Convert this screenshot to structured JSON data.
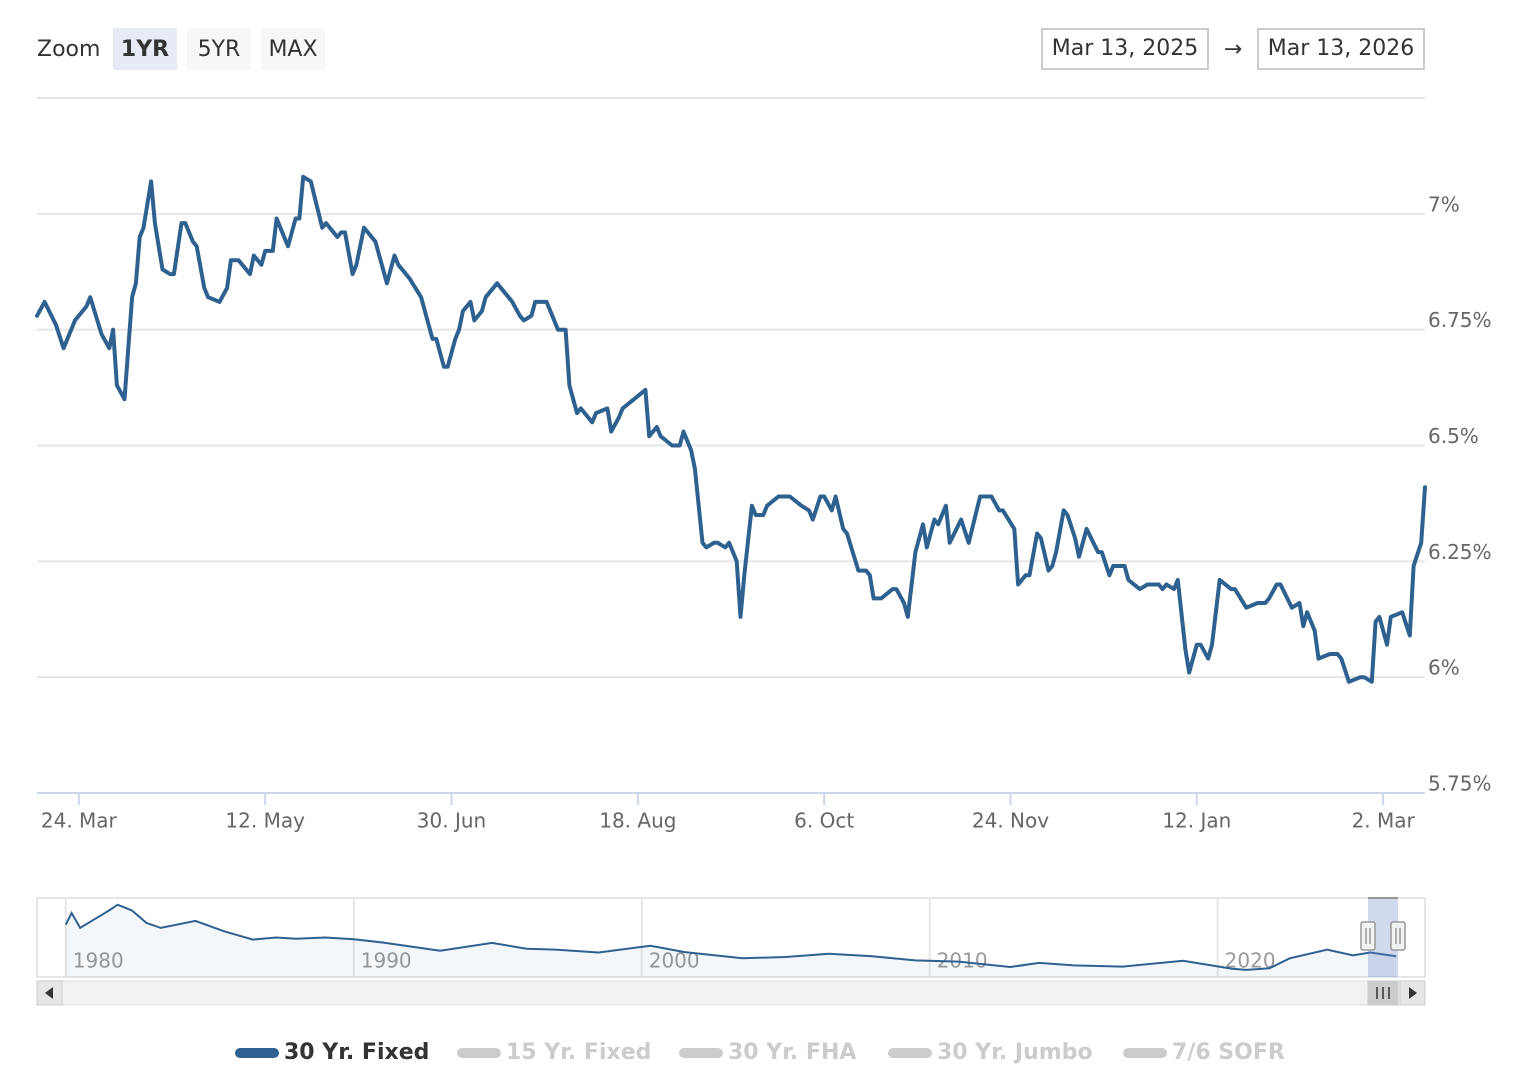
{
  "chart_data": {
    "type": "line",
    "range_selector": {
      "label": "Zoom",
      "buttons": [
        "1YR",
        "5YR",
        "MAX"
      ],
      "selected": 0,
      "from": "Mar 13, 2025",
      "separator": "→",
      "to": "Mar 13, 2026"
    },
    "x": [
      "2025-03-13",
      "2025-03-15",
      "2025-03-18",
      "2025-03-20",
      "2025-03-23",
      "2025-03-26",
      "2025-03-27",
      "2025-03-30",
      "2025-04-01",
      "2025-04-02",
      "2025-04-03",
      "2025-04-05",
      "2025-04-07",
      "2025-04-08",
      "2025-04-09",
      "2025-04-10",
      "2025-04-12",
      "2025-04-13",
      "2025-04-15",
      "2025-04-17",
      "2025-04-18",
      "2025-04-20",
      "2025-04-21",
      "2025-04-23",
      "2025-04-24",
      "2025-04-26",
      "2025-04-27",
      "2025-04-30",
      "2025-05-02",
      "2025-05-03",
      "2025-05-05",
      "2025-05-08",
      "2025-05-09",
      "2025-05-11",
      "2025-05-12",
      "2025-05-14",
      "2025-05-15",
      "2025-05-17",
      "2025-05-18",
      "2025-05-20",
      "2025-05-21",
      "2025-05-22",
      "2025-05-24",
      "2025-05-27",
      "2025-05-28",
      "2025-05-31",
      "2025-06-01",
      "2025-06-02",
      "2025-06-04",
      "2025-06-05",
      "2025-06-07",
      "2025-06-10",
      "2025-06-13",
      "2025-06-15",
      "2025-06-16",
      "2025-06-19",
      "2025-06-22",
      "2025-06-23",
      "2025-06-25",
      "2025-06-26",
      "2025-06-28",
      "2025-06-29",
      "2025-07-01",
      "2025-07-02",
      "2025-07-03",
      "2025-07-05",
      "2025-07-06",
      "2025-07-08",
      "2025-07-09",
      "2025-07-12",
      "2025-07-15",
      "2025-07-16",
      "2025-07-18",
      "2025-07-19",
      "2025-07-21",
      "2025-07-22",
      "2025-07-25",
      "2025-07-27",
      "2025-07-28",
      "2025-07-30",
      "2025-07-31",
      "2025-08-02",
      "2025-08-03",
      "2025-08-06",
      "2025-08-07",
      "2025-08-10",
      "2025-08-11",
      "2025-08-13",
      "2025-08-14",
      "2025-08-17",
      "2025-08-20",
      "2025-08-21",
      "2025-08-23",
      "2025-08-24",
      "2025-08-27",
      "2025-08-29",
      "2025-08-30",
      "2025-09-01",
      "2025-09-02",
      "2025-09-04",
      "2025-09-05",
      "2025-09-07",
      "2025-09-08",
      "2025-09-10",
      "2025-09-11",
      "2025-09-13",
      "2025-09-14",
      "2025-09-15",
      "2025-09-17",
      "2025-09-18",
      "2025-09-20",
      "2025-09-21",
      "2025-09-24",
      "2025-09-27",
      "2025-09-30",
      "2025-10-02",
      "2025-10-03",
      "2025-10-05",
      "2025-10-06",
      "2025-10-08",
      "2025-10-09",
      "2025-10-11",
      "2025-10-12",
      "2025-10-15",
      "2025-10-17",
      "2025-10-18",
      "2025-10-19",
      "2025-10-21",
      "2025-10-24",
      "2025-10-25",
      "2025-10-27",
      "2025-10-28",
      "2025-10-30",
      "2025-11-01",
      "2025-11-02",
      "2025-11-04",
      "2025-11-05",
      "2025-11-07",
      "2025-11-08",
      "2025-11-11",
      "2025-11-13",
      "2025-11-16",
      "2025-11-19",
      "2025-11-21",
      "2025-11-22",
      "2025-11-25",
      "2025-11-26",
      "2025-11-28",
      "2025-11-29",
      "2025-12-01",
      "2025-12-02",
      "2025-12-04",
      "2025-12-05",
      "2025-12-06",
      "2025-12-08",
      "2025-12-09",
      "2025-12-11",
      "2025-12-12",
      "2025-12-14",
      "2025-12-17",
      "2025-12-18",
      "2025-12-20",
      "2025-12-21",
      "2025-12-24",
      "2025-12-25",
      "2025-12-28",
      "2025-12-30",
      "2026-01-02",
      "2026-01-03",
      "2026-01-04",
      "2026-01-06",
      "2026-01-07",
      "2026-01-09",
      "2026-01-10",
      "2026-01-12",
      "2026-01-13",
      "2026-01-15",
      "2026-01-16",
      "2026-01-18",
      "2026-01-21",
      "2026-01-22",
      "2026-01-25",
      "2026-01-28",
      "2026-01-30",
      "2026-01-31",
      "2026-02-02",
      "2026-02-03",
      "2026-02-06",
      "2026-02-08",
      "2026-02-09",
      "2026-02-10",
      "2026-02-12",
      "2026-02-13",
      "2026-02-16",
      "2026-02-18",
      "2026-02-19",
      "2026-02-21",
      "2026-02-24",
      "2026-02-25",
      "2026-02-27",
      "2026-02-28",
      "2026-03-01",
      "2026-03-03",
      "2026-03-04",
      "2026-03-07",
      "2026-03-09",
      "2026-03-10",
      "2026-03-12",
      "2026-03-13"
    ],
    "series": [
      {
        "name": "30 Yr. Fixed",
        "color": "#2f6190",
        "visible": true,
        "values": [
          6.78,
          6.81,
          6.76,
          6.71,
          6.77,
          6.8,
          6.82,
          6.74,
          6.71,
          6.75,
          6.63,
          6.6,
          6.82,
          6.85,
          6.95,
          6.97,
          7.07,
          6.98,
          6.88,
          6.87,
          6.87,
          6.98,
          6.98,
          6.94,
          6.93,
          6.84,
          6.82,
          6.81,
          6.84,
          6.9,
          6.9,
          6.87,
          6.91,
          6.89,
          6.92,
          6.92,
          6.99,
          6.95,
          6.93,
          6.99,
          6.99,
          7.08,
          7.07,
          6.97,
          6.98,
          6.95,
          6.96,
          6.96,
          6.87,
          6.89,
          6.97,
          6.94,
          6.85,
          6.91,
          6.89,
          6.86,
          6.82,
          6.79,
          6.73,
          6.73,
          6.67,
          6.67,
          6.73,
          6.75,
          6.79,
          6.81,
          6.77,
          6.79,
          6.82,
          6.85,
          6.82,
          6.81,
          6.78,
          6.77,
          6.78,
          6.81,
          6.81,
          6.77,
          6.75,
          6.75,
          6.63,
          6.57,
          6.58,
          6.55,
          6.57,
          6.58,
          6.53,
          6.56,
          6.58,
          6.6,
          6.62,
          6.52,
          6.54,
          6.52,
          6.5,
          6.5,
          6.53,
          6.49,
          6.45,
          6.29,
          6.28,
          6.29,
          6.29,
          6.28,
          6.29,
          6.25,
          6.13,
          6.22,
          6.37,
          6.35,
          6.35,
          6.37,
          6.39,
          6.39,
          6.37,
          6.36,
          6.34,
          6.39,
          6.39,
          6.36,
          6.39,
          6.32,
          6.31,
          6.23,
          6.23,
          6.22,
          6.17,
          6.17,
          6.19,
          6.19,
          6.16,
          6.13,
          6.27,
          6.33,
          6.28,
          6.34,
          6.33,
          6.37,
          6.29,
          6.34,
          6.29,
          6.39,
          6.39,
          6.36,
          6.36,
          6.32,
          6.2,
          6.22,
          6.22,
          6.31,
          6.3,
          6.23,
          6.24,
          6.27,
          6.36,
          6.35,
          6.3,
          6.26,
          6.32,
          6.27,
          6.27,
          6.22,
          6.24,
          6.24,
          6.21,
          6.19,
          6.2,
          6.2,
          6.19,
          6.2,
          6.19,
          6.21,
          6.06,
          6.01,
          6.07,
          6.07,
          6.04,
          6.07,
          6.21,
          6.19,
          6.19,
          6.15,
          6.16,
          6.16,
          6.17,
          6.2,
          6.2,
          6.15,
          6.16,
          6.11,
          6.14,
          6.1,
          6.04,
          6.05,
          6.05,
          6.04,
          5.99,
          6.0,
          6.0,
          5.99,
          6.12,
          6.13,
          6.07,
          6.13,
          6.14,
          6.09,
          6.24,
          6.29,
          6.41
        ]
      },
      {
        "name": "15 Yr. Fixed",
        "visible": false
      },
      {
        "name": "30 Yr. FHA",
        "visible": false
      },
      {
        "name": "30 Yr. Jumbo",
        "visible": false
      },
      {
        "name": "7/6 SOFR",
        "visible": false
      }
    ],
    "xlim": [
      "2025-03-13",
      "2026-03-13"
    ],
    "xticks": [
      {
        "value": "2025-03-24",
        "label": "24. Mar"
      },
      {
        "value": "2025-05-12",
        "label": "12. May"
      },
      {
        "value": "2025-06-30",
        "label": "30. Jun"
      },
      {
        "value": "2025-08-18",
        "label": "18. Aug"
      },
      {
        "value": "2025-10-06",
        "label": "6. Oct"
      },
      {
        "value": "2025-11-24",
        "label": "24. Nov"
      },
      {
        "value": "2026-01-12",
        "label": "12. Jan"
      },
      {
        "value": "2026-03-02",
        "label": "2. Mar"
      }
    ],
    "ylim": [
      5.75,
      7.25
    ],
    "yticks": [
      {
        "value": 5.75,
        "label": "5.75%"
      },
      {
        "value": 6,
        "label": "6%"
      },
      {
        "value": 6.25,
        "label": "6.25%"
      },
      {
        "value": 6.5,
        "label": "6.5%"
      },
      {
        "value": 6.75,
        "label": "6.75%"
      },
      {
        "value": 7,
        "label": "7%"
      }
    ],
    "y_axis_side": "right",
    "grid": true,
    "navigator": {
      "x": [
        1980.0,
        1980.2,
        1980.5,
        1981.0,
        1981.5,
        1981.8,
        1982.3,
        1982.8,
        1983.3,
        1984.5,
        1985.5,
        1986.5,
        1987.3,
        1988,
        1989,
        1990,
        1991,
        1992,
        1993,
        1994.8,
        1996,
        1997,
        1998.5,
        2000.3,
        2001.5,
        2003.5,
        2005,
        2006.5,
        2008,
        2009.5,
        2011,
        2012.8,
        2013.8,
        2015,
        2016.7,
        2018.8,
        2020.5,
        2021,
        2021.8,
        2022.5,
        2023.8,
        2024.7,
        2025.3,
        2026.2
      ],
      "values": [
        13.6,
        16.4,
        12.8,
        14.9,
        17,
        18.4,
        17,
        14,
        12.8,
        14.5,
        12,
        10,
        10.5,
        10.2,
        10.5,
        10.1,
        9.3,
        8.3,
        7.3,
        9.2,
        7.8,
        7.6,
        6.9,
        8.5,
        7,
        5.5,
        5.8,
        6.6,
        6,
        5,
        4.7,
        3.4,
        4.4,
        3.8,
        3.5,
        4.9,
        3,
        2.7,
        3.1,
        5.5,
        7.6,
        6.2,
        6.9,
        6.0
      ],
      "xlim": [
        1979,
        2027.2
      ],
      "ylim": [
        1,
        20
      ],
      "xticks": [
        1980,
        1990,
        2000,
        2010,
        2020
      ]
    },
    "legend": "bottom"
  }
}
